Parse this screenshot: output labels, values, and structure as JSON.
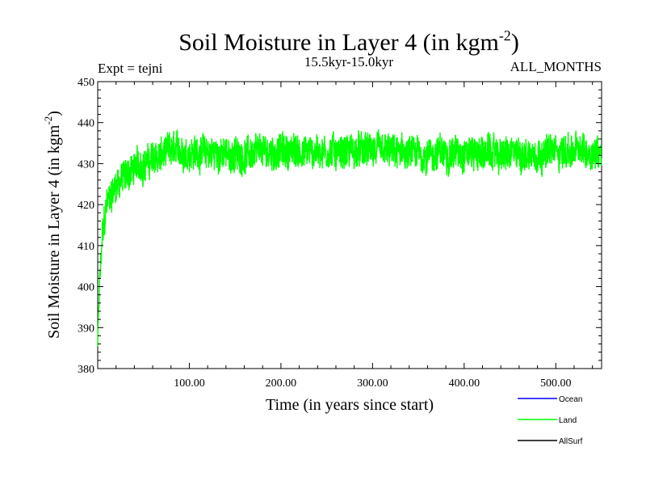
{
  "chart_data": {
    "type": "line",
    "title": "Soil Moisture in Layer 4 (in kgm",
    "title_sup": "-2",
    "title_close": ")",
    "subtitle_left": "Expt = tejni",
    "subtitle_center": "15.5kyr-15.0kyr",
    "subtitle_right": "ALL_MONTHS",
    "xlabel": "Time (in years since start)",
    "ylabel": "Soil Moisture in Layer 4 (in kgm",
    "ylabel_sup": "-2",
    "ylabel_close": ")",
    "xlim": [
      0,
      550
    ],
    "ylim": [
      380,
      450
    ],
    "x_ticks": [
      100,
      200,
      300,
      400,
      500
    ],
    "x_tick_labels": [
      "100.00",
      "200.00",
      "300.00",
      "400.00",
      "500.00"
    ],
    "y_ticks": [
      380,
      390,
      400,
      410,
      420,
      430,
      440,
      450
    ],
    "y_tick_labels": [
      "380",
      "390",
      "400",
      "410",
      "420",
      "430",
      "440",
      "450"
    ],
    "series": [
      {
        "name": "Ocean",
        "color": "#0000ff",
        "values": []
      },
      {
        "name": "Land",
        "color": "#00ff00",
        "values": "noisy time series: rises from ~385 at year 0 to ~425 by year 15, ~430 by year 40, then fluctuates roughly 422–441 around a mean of ~433 through year 550"
      },
      {
        "name": "AllSurf",
        "color": "#000000",
        "values": []
      }
    ],
    "land_envelope": {
      "x": [
        0,
        2,
        5,
        10,
        20,
        40,
        60,
        80,
        100,
        150,
        200,
        250,
        300,
        350,
        400,
        450,
        500,
        550
      ],
      "mean": [
        386,
        400,
        412,
        420,
        425,
        429,
        431,
        433,
        433,
        432,
        433,
        433,
        433,
        432,
        433,
        432,
        433,
        433
      ],
      "amp": [
        2,
        3,
        4,
        4,
        4,
        4,
        4,
        4,
        4,
        4,
        4,
        4,
        4,
        4,
        4,
        4,
        4,
        4
      ]
    },
    "legend": [
      {
        "label": "Ocean",
        "color": "#0000ff"
      },
      {
        "label": "Land",
        "color": "#00ff00"
      },
      {
        "label": "AllSurf",
        "color": "#000000"
      }
    ],
    "legend_position": "bottom-right"
  }
}
